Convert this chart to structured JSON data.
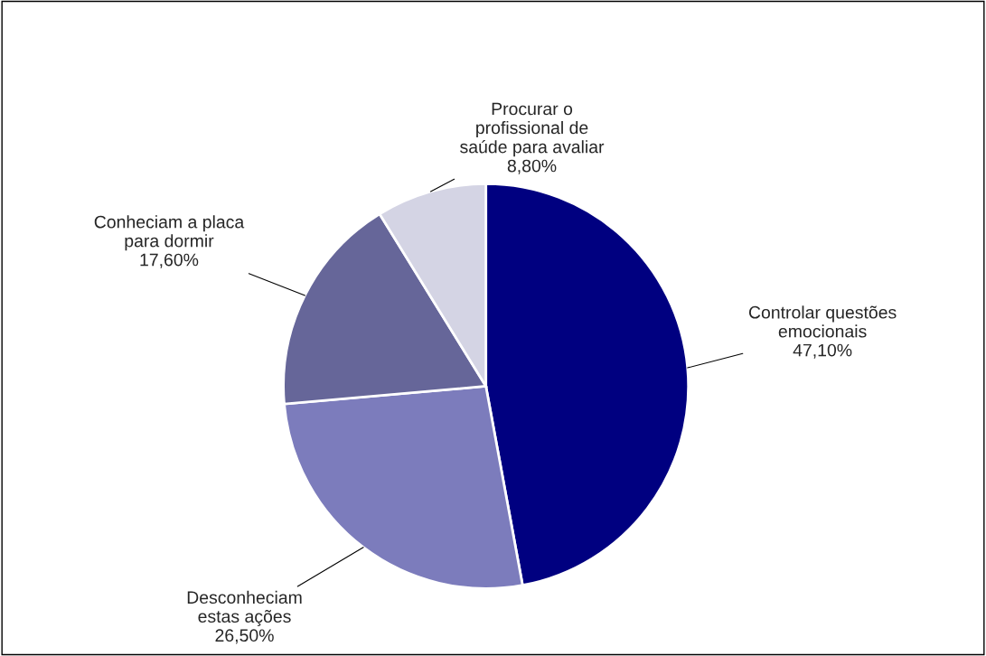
{
  "chart_data": {
    "type": "pie",
    "categories": [
      "Controlar questões\nemocionais",
      "Desconheciam\nestas ações",
      "Conheciam a placa\npara dormir",
      "Procurar o\nprofissional de\nsaúde para avaliar"
    ],
    "values": [
      47.1,
      26.5,
      17.6,
      8.8
    ],
    "value_labels": [
      "47,10%",
      "26,50%",
      "17,60%",
      "8,80%"
    ],
    "colors": [
      "#000080",
      "#7c7cbc",
      "#666699",
      "#d4d4e4"
    ],
    "legend": false
  }
}
